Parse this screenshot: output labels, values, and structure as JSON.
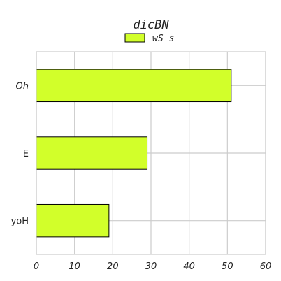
{
  "chart_data": {
    "type": "bar",
    "orientation": "horizontal",
    "title": "dicBN",
    "categories": [
      "Oh",
      "E",
      "yoH"
    ],
    "series": [
      {
        "name": "wS s",
        "values": [
          51,
          29,
          19
        ],
        "color": "#d2ff2a"
      }
    ],
    "xlim": [
      0,
      60
    ],
    "xticks": [
      "0",
      "10",
      "20",
      "30",
      "40",
      "50",
      "60"
    ],
    "xlabel": "",
    "ylabel": "",
    "grid": true,
    "legend_position": "top-center"
  }
}
